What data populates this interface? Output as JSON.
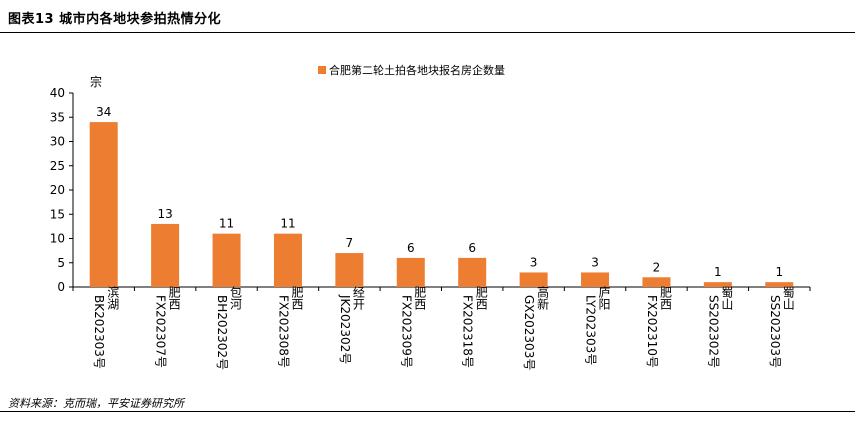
{
  "figure": {
    "title": "图表13    城市内各地块参拍热情分化",
    "source": "资料来源：克而瑞，平安证券研究所"
  },
  "chart_data": {
    "type": "bar",
    "ylabel": "宗",
    "ylim": [
      0,
      40
    ],
    "yticks": [
      0,
      5,
      10,
      15,
      20,
      25,
      30,
      35,
      40
    ],
    "legend_position": "top-center",
    "grid": false,
    "colors": {
      "bar": "#ED7D31"
    },
    "categories": [
      "BK202303号 滨湖",
      "FX202307号 肥西",
      "BH202302号 包河",
      "FX202308号 肥西",
      "JK202302号 经开",
      "FX202309号 肥西",
      "FX202318号 肥西",
      "GX202303号 高新",
      "LY202303号 庐阳",
      "FX202310号 肥西",
      "SS202302号 蜀山",
      "SS202303号 蜀山"
    ],
    "series": [
      {
        "name": "合肥第二轮土拍各地块报名房企数量",
        "values": [
          34,
          13,
          11,
          11,
          7,
          6,
          6,
          3,
          3,
          2,
          1,
          1
        ]
      }
    ]
  }
}
